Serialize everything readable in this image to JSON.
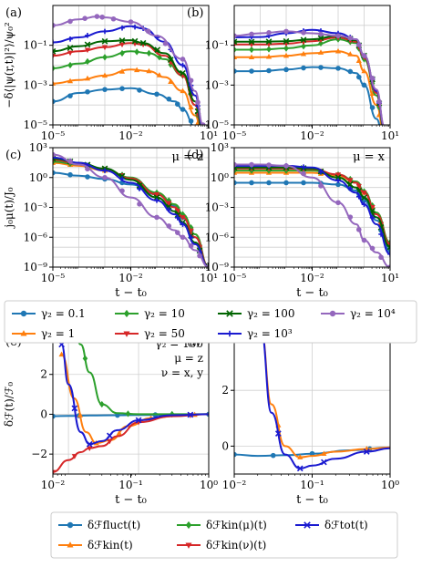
{
  "colors": {
    "g0_1": "#1f77b4",
    "g1": "#ff7f0e",
    "g10": "#2ca02c",
    "g50": "#d62728",
    "g100": "#006400",
    "g1000": "#1a1ad0",
    "g10000": "#9467bd"
  },
  "legend_top": [
    {
      "key": "g0_1",
      "marker": "circle",
      "label": "γ₂ = 0.1"
    },
    {
      "key": "g10",
      "marker": "diamond",
      "label": "γ₂ = 10"
    },
    {
      "key": "g100",
      "marker": "x",
      "label": "γ₂ = 100"
    },
    {
      "key": "g10000",
      "marker": "circle",
      "label": "γ₂ = 10⁴"
    },
    {
      "key": "g1",
      "marker": "triangle-up",
      "label": "γ₂ = 1"
    },
    {
      "key": "g50",
      "marker": "triangle-down",
      "label": "γ₂ = 50"
    },
    {
      "key": "g1000",
      "marker": "plus",
      "label": "γ₂ = 10³"
    }
  ],
  "legend_bottom": [
    {
      "key": "g0_1",
      "marker": "circle",
      "label": "δℱfluct(t)"
    },
    {
      "key": "g10",
      "marker": "diamond",
      "label": "δℱkin(μ)(t)"
    },
    {
      "key": "g1000",
      "marker": "x",
      "label": "δℱtot(t)"
    },
    {
      "key": "g1",
      "marker": "triangle-up",
      "label": "δℱkin(t)"
    },
    {
      "key": "g50",
      "marker": "triangle-down",
      "label": "δℱkin(ν)(t)"
    }
  ],
  "chart_data": [
    {
      "panel": "a",
      "type": "line",
      "xscale": "log",
      "yscale": "log",
      "xlim": [
        1e-05,
        10
      ],
      "ylim": [
        1e-05,
        10
      ],
      "ylabel": "−δ⟨|ψ(r,t)|²⟩/ψ₀²",
      "xticks": [
        "10⁻⁵",
        "10⁻²",
        "10¹"
      ],
      "yticks": [
        "10⁻⁵",
        "10⁻³",
        "10⁻¹"
      ],
      "series": [
        {
          "key": "g0_1",
          "x": [
            1e-05,
            0.0001,
            0.001,
            0.01,
            0.1,
            0.5,
            1,
            3,
            6
          ],
          "y": [
            0.00015,
            0.0004,
            0.0006,
            0.0007,
            0.00035,
            0.00015,
            6e-05,
            8e-06,
            1e-06
          ]
        },
        {
          "key": "g1",
          "x": [
            1e-05,
            0.0001,
            0.001,
            0.01,
            0.05,
            0.2,
            1,
            3,
            6
          ],
          "y": [
            0.0012,
            0.0018,
            0.003,
            0.006,
            0.005,
            0.0025,
            0.0005,
            3e-05,
            2e-06
          ]
        },
        {
          "key": "g10",
          "x": [
            1e-05,
            0.0001,
            0.001,
            0.01,
            0.05,
            0.2,
            1,
            3,
            6
          ],
          "y": [
            0.007,
            0.012,
            0.025,
            0.05,
            0.04,
            0.02,
            0.003,
            0.0001,
            3e-06
          ]
        },
        {
          "key": "g50",
          "x": [
            1e-05,
            0.0001,
            0.001,
            0.01,
            0.03,
            0.2,
            1,
            3,
            6
          ],
          "y": [
            0.03,
            0.05,
            0.08,
            0.13,
            0.11,
            0.03,
            0.003,
            0.0001,
            4e-06
          ]
        },
        {
          "key": "g100",
          "x": [
            1e-05,
            0.0001,
            0.001,
            0.01,
            0.03,
            0.2,
            1,
            3,
            6
          ],
          "y": [
            0.05,
            0.09,
            0.16,
            0.18,
            0.13,
            0.04,
            0.004,
            0.00015,
            5e-06
          ]
        },
        {
          "key": "g1000",
          "x": [
            1e-05,
            0.0001,
            0.001,
            0.01,
            0.03,
            0.2,
            1,
            3,
            6
          ],
          "y": [
            0.14,
            0.25,
            0.5,
            0.9,
            0.7,
            0.15,
            0.01,
            0.0003,
            8e-06
          ]
        },
        {
          "key": "g10000",
          "x": [
            1e-05,
            0.0001,
            0.0005,
            0.001,
            0.01,
            0.1,
            1,
            3,
            6
          ],
          "y": [
            1.0,
            2.0,
            2.8,
            2.5,
            1.5,
            0.3,
            0.02,
            0.0005,
            1e-05
          ]
        }
      ]
    },
    {
      "panel": "b",
      "type": "line",
      "xscale": "log",
      "yscale": "log",
      "xlim": [
        1e-05,
        10
      ],
      "ylim": [
        1e-05,
        10
      ],
      "xticks": [
        "10⁻⁵",
        "10⁻²",
        "10¹"
      ],
      "yticks": [
        "10⁻⁵",
        "10⁻³",
        "10⁻¹"
      ],
      "series": [
        {
          "key": "g0_1",
          "x": [
            1e-05,
            0.0001,
            0.001,
            0.01,
            0.1,
            0.5,
            1,
            3,
            6
          ],
          "y": [
            0.005,
            0.005,
            0.006,
            0.008,
            0.007,
            0.004,
            0.001,
            2e-05,
            1e-06
          ]
        },
        {
          "key": "g1",
          "x": [
            1e-05,
            0.0001,
            0.001,
            0.01,
            0.1,
            0.5,
            1,
            3,
            6
          ],
          "y": [
            0.025,
            0.025,
            0.03,
            0.04,
            0.05,
            0.03,
            0.005,
            0.0001,
            3e-06
          ]
        },
        {
          "key": "g10",
          "x": [
            1e-05,
            0.0001,
            0.001,
            0.01,
            0.1,
            0.5,
            1,
            3,
            6
          ],
          "y": [
            0.06,
            0.06,
            0.07,
            0.1,
            0.2,
            0.13,
            0.02,
            0.0003,
            5e-06
          ]
        },
        {
          "key": "g50",
          "x": [
            1e-05,
            0.0001,
            0.001,
            0.01,
            0.1,
            0.5,
            1,
            3,
            6
          ],
          "y": [
            0.11,
            0.11,
            0.12,
            0.16,
            0.25,
            0.15,
            0.025,
            0.0004,
            6e-06
          ]
        },
        {
          "key": "g100",
          "x": [
            1e-05,
            0.0001,
            0.001,
            0.01,
            0.1,
            0.5,
            1,
            3,
            6
          ],
          "y": [
            0.15,
            0.15,
            0.16,
            0.2,
            0.3,
            0.18,
            0.03,
            0.0005,
            7e-06
          ]
        },
        {
          "key": "g1000",
          "x": [
            1e-05,
            0.0001,
            0.001,
            0.01,
            0.1,
            0.5,
            1,
            3,
            6
          ],
          "y": [
            0.25,
            0.26,
            0.4,
            0.6,
            0.4,
            0.2,
            0.03,
            0.0005,
            8e-06
          ]
        },
        {
          "key": "g10000",
          "x": [
            1e-05,
            0.0001,
            0.001,
            0.01,
            0.1,
            0.5,
            1,
            3,
            6
          ],
          "y": [
            0.3,
            0.4,
            0.5,
            0.4,
            0.3,
            0.2,
            0.03,
            0.0006,
            9e-06
          ]
        }
      ]
    },
    {
      "panel": "c",
      "type": "line",
      "xscale": "log",
      "yscale": "log",
      "xlim": [
        1e-05,
        10
      ],
      "ylim": [
        1e-09,
        1000
      ],
      "xlabel": "t − t₀",
      "ylabel": "j₀μ(t)/J₀",
      "annotation": "μ = z",
      "xticks": [
        "10⁻⁵",
        "10⁻²",
        "10¹"
      ],
      "yticks": [
        "10⁻⁹",
        "10⁻⁶",
        "10⁻³",
        "10⁰",
        "10³"
      ],
      "series": [
        {
          "key": "g0_1",
          "x": [
            1e-05,
            0.0001,
            0.001,
            0.01,
            0.1,
            0.5,
            1,
            3,
            10
          ],
          "y": [
            3,
            1.5,
            0.7,
            0.2,
            0.02,
            0.0015,
            0.0001,
            1e-06,
            1e-09
          ]
        },
        {
          "key": "g1",
          "x": [
            1e-05,
            0.0001,
            0.001,
            0.01,
            0.1,
            0.5,
            1,
            3,
            10
          ],
          "y": [
            30,
            15,
            5,
            0.8,
            0.03,
            0.002,
            0.0002,
            2e-06,
            1e-09
          ]
        },
        {
          "key": "g10",
          "x": [
            1e-05,
            0.0001,
            0.001,
            0.01,
            0.1,
            0.5,
            1,
            3,
            10
          ],
          "y": [
            40,
            20,
            6,
            1,
            0.03,
            0.002,
            0.0002,
            2e-06,
            1e-09
          ]
        },
        {
          "key": "g50",
          "x": [
            1e-05,
            0.0001,
            0.001,
            0.01,
            0.1,
            0.5,
            1,
            3,
            10
          ],
          "y": [
            60,
            25,
            7,
            0.8,
            0.02,
            0.001,
            0.0001,
            1e-06,
            1e-09
          ]
        },
        {
          "key": "g100",
          "x": [
            1e-05,
            0.0001,
            0.001,
            0.01,
            0.1,
            0.5,
            1,
            3,
            10
          ],
          "y": [
            80,
            30,
            8,
            0.6,
            0.01,
            0.0004,
            3e-05,
            3e-07,
            1e-09
          ]
        },
        {
          "key": "g1000",
          "x": [
            1e-05,
            0.0001,
            0.001,
            0.01,
            0.1,
            0.5,
            1,
            3,
            10
          ],
          "y": [
            100,
            30,
            5,
            0.3,
            0.005,
            0.0002,
            2e-05,
            2e-07,
            1e-09
          ]
        },
        {
          "key": "g10000",
          "x": [
            1e-05,
            0.0001,
            0.001,
            0.01,
            0.1,
            0.5,
            1,
            3,
            10
          ],
          "y": [
            200,
            20,
            1,
            0.01,
            0.0001,
            5e-06,
            1e-06,
            5e-08,
            1e-09
          ]
        }
      ]
    },
    {
      "panel": "d",
      "type": "line",
      "xscale": "log",
      "yscale": "log",
      "xlim": [
        1e-05,
        10
      ],
      "ylim": [
        1e-09,
        1000
      ],
      "xlabel": "t − t₀",
      "annotation": "μ = x",
      "xticks": [
        "10⁻⁵",
        "10⁻²",
        "10¹"
      ],
      "yticks": [
        "10⁻⁹",
        "10⁻⁶",
        "10⁻³",
        "10⁰",
        "10³"
      ],
      "series": [
        {
          "key": "g0_1",
          "x": [
            1e-05,
            0.0001,
            0.001,
            0.01,
            0.1,
            0.5,
            1,
            3,
            10
          ],
          "y": [
            0.3,
            0.3,
            0.3,
            0.3,
            0.2,
            0.05,
            0.005,
            5e-05,
            5e-08
          ]
        },
        {
          "key": "g1",
          "x": [
            1e-05,
            0.0001,
            0.001,
            0.01,
            0.1,
            0.5,
            1,
            3,
            10
          ],
          "y": [
            3,
            3,
            3,
            3,
            1.5,
            0.3,
            0.03,
            0.0003,
            3e-07
          ]
        },
        {
          "key": "g10",
          "x": [
            1e-05,
            0.0001,
            0.001,
            0.01,
            0.1,
            0.5,
            1,
            3,
            10
          ],
          "y": [
            5,
            5,
            5,
            5,
            2,
            0.4,
            0.04,
            0.0003,
            3e-07
          ]
        },
        {
          "key": "g50",
          "x": [
            1e-05,
            0.0001,
            0.001,
            0.01,
            0.1,
            0.5,
            1,
            3,
            10
          ],
          "y": [
            8,
            8,
            8,
            7,
            2,
            0.3,
            0.03,
            0.0002,
            2e-07
          ]
        },
        {
          "key": "g100",
          "x": [
            1e-05,
            0.0001,
            0.001,
            0.01,
            0.1,
            0.5,
            1,
            3,
            10
          ],
          "y": [
            10,
            10,
            10,
            8,
            1,
            0.1,
            0.01,
            0.0001,
            1e-07
          ]
        },
        {
          "key": "g1000",
          "x": [
            1e-05,
            0.0001,
            0.001,
            0.01,
            0.1,
            0.5,
            1,
            3,
            10
          ],
          "y": [
            15,
            15,
            15,
            10,
            0.5,
            0.03,
            0.002,
            2e-05,
            2e-08
          ]
        },
        {
          "key": "g10000",
          "x": [
            1e-05,
            0.0001,
            0.001,
            0.01,
            0.1,
            0.5,
            1,
            3,
            10
          ],
          "y": [
            20,
            20,
            15,
            1,
            0.003,
            2e-05,
            5e-07,
            3e-08,
            1e-09
          ]
        }
      ]
    },
    {
      "panel": "e",
      "type": "line",
      "xscale": "log",
      "yscale": "linear",
      "xlim": [
        0.006,
        1
      ],
      "ylim": [
        -3,
        4
      ],
      "xlabel": "t − t₀",
      "ylabel": "δℱ(t)/ℱ₀",
      "annotation_lines": [
        "γ₂ = 100",
        "μ = z",
        "ν = x, y"
      ],
      "xticks": [
        "10⁻²",
        "10⁻¹",
        "10⁰"
      ],
      "yticks": [
        "−2",
        "0",
        "2",
        "4"
      ],
      "series": [
        {
          "key": "g0_1",
          "x": [
            0.006,
            0.01,
            0.02,
            0.05,
            0.1,
            0.3,
            1
          ],
          "y": [
            -0.1,
            -0.08,
            -0.06,
            -0.05,
            -0.04,
            -0.02,
            0
          ]
        },
        {
          "key": "g10",
          "x": [
            0.012,
            0.015,
            0.02,
            0.03,
            0.05,
            0.1,
            0.3,
            1
          ],
          "y": [
            4.2,
            3.5,
            2.1,
            0.5,
            0.05,
            0,
            0,
            0
          ]
        },
        {
          "key": "g1",
          "x": [
            0.008,
            0.012,
            0.018,
            0.025,
            0.04,
            0.07,
            0.15,
            0.4,
            1
          ],
          "y": [
            3,
            0.8,
            -0.9,
            -1.45,
            -1.3,
            -0.6,
            -0.2,
            -0.05,
            0
          ]
        },
        {
          "key": "g50",
          "x": [
            0.006,
            0.01,
            0.015,
            0.02,
            0.03,
            0.05,
            0.1,
            0.3,
            1
          ],
          "y": [
            -2.9,
            -2.3,
            -1.9,
            -1.7,
            -1.6,
            -1.1,
            -0.4,
            -0.1,
            0
          ]
        },
        {
          "key": "g1000",
          "x": [
            0.008,
            0.01,
            0.015,
            0.02,
            0.03,
            0.05,
            0.1,
            0.3,
            1
          ],
          "y": [
            3.5,
            1.5,
            -0.9,
            -1.5,
            -1.35,
            -0.8,
            -0.3,
            -0.05,
            0
          ]
        }
      ]
    },
    {
      "panel": "f",
      "type": "line",
      "xscale": "log",
      "yscale": "linear",
      "xlim": [
        0.01,
        1
      ],
      "ylim": [
        -1,
        4
      ],
      "xlabel": "t − t₀",
      "xticks": [
        "10⁻²",
        "10⁻¹",
        "10⁰"
      ],
      "yticks": [
        "0",
        "2",
        "4"
      ],
      "series": [
        {
          "key": "g0_1",
          "x": [
            0.01,
            0.02,
            0.05,
            0.1,
            0.3,
            1
          ],
          "y": [
            -0.3,
            -0.35,
            -0.32,
            -0.27,
            -0.15,
            -0.05
          ]
        },
        {
          "key": "g1",
          "x": [
            0.022,
            0.03,
            0.045,
            0.07,
            0.1,
            0.2,
            0.5,
            1
          ],
          "y": [
            4.2,
            1.5,
            0,
            -0.4,
            -0.35,
            -0.2,
            -0.1,
            -0.05
          ]
        },
        {
          "key": "g1000",
          "x": [
            0.022,
            0.03,
            0.045,
            0.07,
            0.1,
            0.2,
            0.5,
            1
          ],
          "y": [
            4.2,
            1.2,
            -0.3,
            -0.8,
            -0.7,
            -0.45,
            -0.2,
            -0.08
          ]
        }
      ]
    }
  ]
}
